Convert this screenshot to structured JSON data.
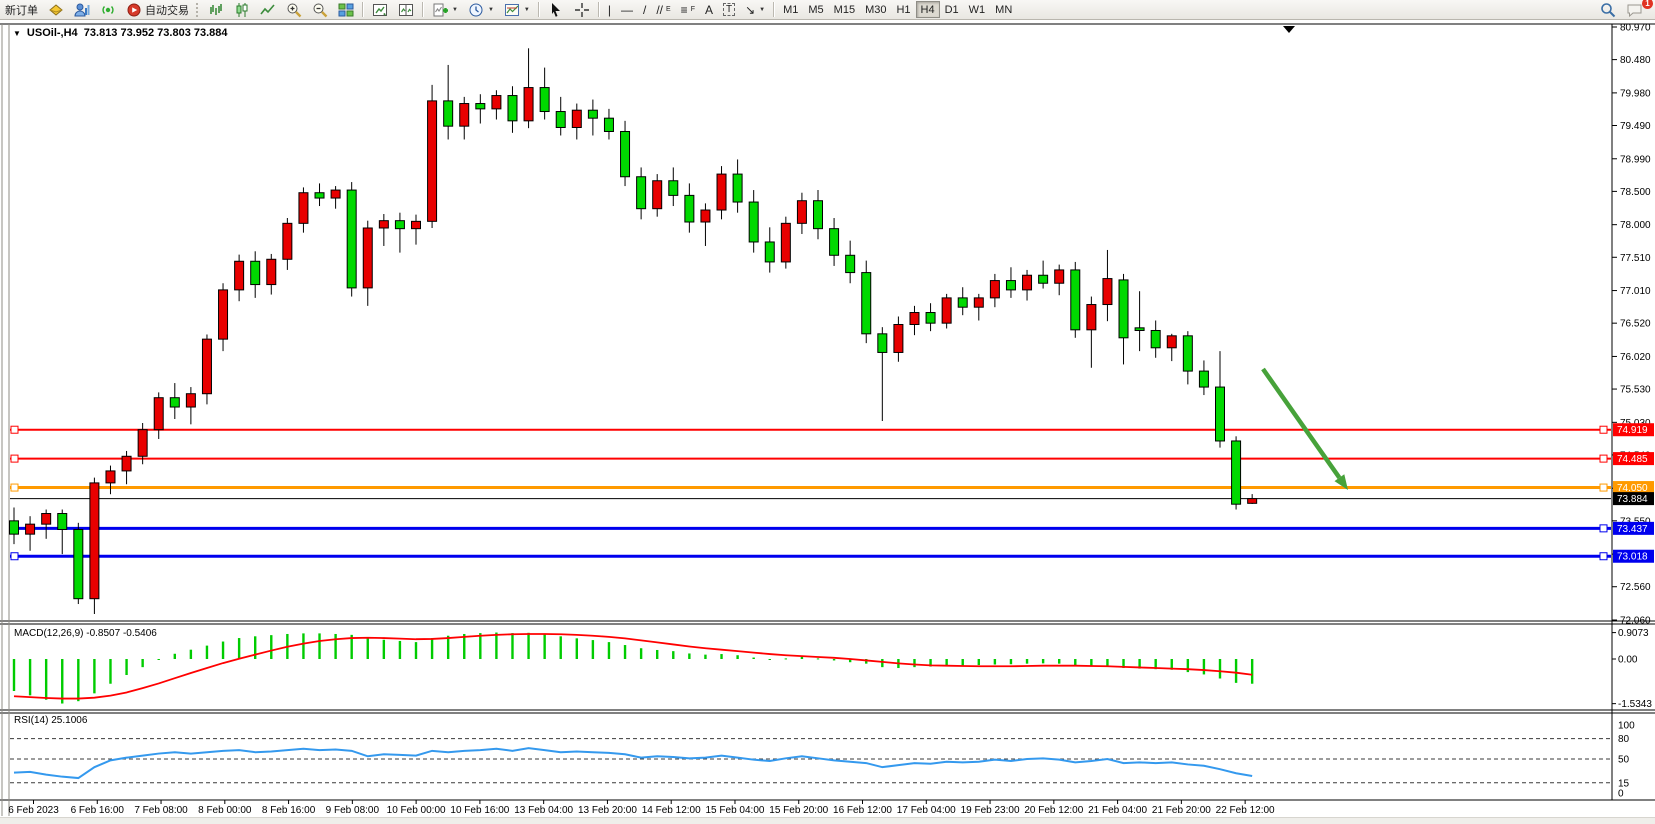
{
  "toolbar": {
    "new_order_label": "新订单",
    "autotrade_label": "自动交易",
    "timeframes": [
      "M1",
      "M5",
      "M15",
      "M30",
      "H1",
      "H4",
      "D1",
      "W1",
      "MN"
    ],
    "active_timeframe": "H4",
    "text_tool_label": "A",
    "label_tool_label": "T",
    "channel_tool_label": "//",
    "channel_tool_sub": "E",
    "fibo_tool_label": "≡",
    "fibo_tool_sub": "F",
    "vline_label": "|",
    "hline_label": "—",
    "trendline_label": "/",
    "arrows_tool_label": "↘",
    "notification_count": "1"
  },
  "chart_header": {
    "symbol_period": "USOil-,H4",
    "ohlc_values": "73.813 73.952 73.803 73.884"
  },
  "price_axis_ticks": [
    "80.970",
    "80.480",
    "79.980",
    "79.490",
    "78.990",
    "78.500",
    "78.000",
    "77.510",
    "77.010",
    "76.520",
    "76.020",
    "75.530",
    "75.030",
    "74.540",
    "74.040",
    "73.550",
    "73.050",
    "72.560",
    "72.060"
  ],
  "macd_panel": {
    "label": "MACD(12,26,9) -0.8507 -0.5406",
    "axis": [
      {
        "label": "0.9073",
        "value": 0.9073
      },
      {
        "label": "0.00",
        "value": 0
      },
      {
        "label": "-1.5343",
        "value": -1.5343
      }
    ]
  },
  "rsi_panel": {
    "label": "RSI(14) 25.1006",
    "axis": [
      {
        "label": "100",
        "value": 100,
        "dashed": false
      },
      {
        "label": "80",
        "value": 80,
        "dashed": true
      },
      {
        "label": "50",
        "value": 50,
        "dashed": true
      },
      {
        "label": "15",
        "value": 15,
        "dashed": true
      },
      {
        "label": "0",
        "value": 0,
        "dashed": false
      }
    ]
  },
  "time_axis": [
    "6 Feb 2023",
    "6 Feb 16:00",
    "7 Feb 08:00",
    "8 Feb 00:00",
    "8 Feb 16:00",
    "9 Feb 08:00",
    "10 Feb 00:00",
    "10 Feb 16:00",
    "13 Feb 04:00",
    "13 Feb 20:00",
    "14 Feb 12:00",
    "15 Feb 04:00",
    "15 Feb 20:00",
    "16 Feb 12:00",
    "17 Feb 04:00",
    "19 Feb 23:00",
    "20 Feb 12:00",
    "21 Feb 04:00",
    "21 Feb 20:00",
    "22 Feb 12:00"
  ],
  "chart_data": {
    "type": "candlestick",
    "symbol": "USOil-",
    "period": "H4",
    "title": "USOil-,H4 73.813 73.952 73.803 73.884",
    "current_bar": {
      "open": 73.813,
      "high": 73.952,
      "low": 73.803,
      "close": 73.884
    },
    "price_range": [
      72.06,
      80.97
    ],
    "bull_color": "#e80000",
    "bear_color": "#00d900",
    "candles": [
      [
        73.55,
        73.75,
        73.2,
        73.35
      ],
      [
        73.35,
        73.62,
        73.1,
        73.5
      ],
      [
        73.5,
        73.72,
        73.28,
        73.66
      ],
      [
        73.66,
        73.72,
        73.05,
        73.42
      ],
      [
        73.42,
        73.52,
        72.3,
        72.38
      ],
      [
        72.38,
        74.2,
        72.15,
        74.12
      ],
      [
        74.12,
        74.38,
        73.95,
        74.3
      ],
      [
        74.3,
        74.6,
        74.1,
        74.52
      ],
      [
        74.52,
        75.02,
        74.4,
        74.92
      ],
      [
        74.92,
        75.48,
        74.78,
        75.4
      ],
      [
        75.4,
        75.62,
        75.08,
        75.26
      ],
      [
        75.26,
        75.56,
        75.0,
        75.46
      ],
      [
        75.46,
        76.35,
        75.3,
        76.28
      ],
      [
        76.28,
        77.12,
        76.1,
        77.02
      ],
      [
        77.02,
        77.55,
        76.85,
        77.45
      ],
      [
        77.45,
        77.6,
        76.9,
        77.1
      ],
      [
        77.1,
        77.56,
        76.95,
        77.48
      ],
      [
        77.48,
        78.1,
        77.32,
        78.02
      ],
      [
        78.02,
        78.56,
        77.88,
        78.48
      ],
      [
        78.48,
        78.62,
        78.28,
        78.4
      ],
      [
        78.4,
        78.58,
        78.24,
        78.52
      ],
      [
        78.52,
        78.64,
        76.92,
        77.05
      ],
      [
        77.05,
        78.06,
        76.78,
        77.95
      ],
      [
        77.95,
        78.16,
        77.68,
        78.06
      ],
      [
        78.06,
        78.18,
        77.58,
        77.94
      ],
      [
        77.94,
        78.15,
        77.7,
        78.05
      ],
      [
        78.05,
        80.1,
        77.95,
        79.86
      ],
      [
        79.86,
        80.4,
        79.28,
        79.48
      ],
      [
        79.48,
        79.92,
        79.28,
        79.82
      ],
      [
        79.82,
        79.96,
        79.52,
        79.74
      ],
      [
        79.74,
        80.02,
        79.58,
        79.94
      ],
      [
        79.94,
        80.08,
        79.38,
        79.56
      ],
      [
        79.56,
        80.65,
        79.45,
        80.06
      ],
      [
        80.06,
        80.36,
        79.58,
        79.7
      ],
      [
        79.7,
        79.92,
        79.34,
        79.46
      ],
      [
        79.46,
        79.82,
        79.28,
        79.72
      ],
      [
        79.72,
        79.88,
        79.34,
        79.6
      ],
      [
        79.6,
        79.74,
        79.28,
        79.4
      ],
      [
        79.4,
        79.56,
        78.58,
        78.72
      ],
      [
        78.72,
        78.86,
        78.08,
        78.24
      ],
      [
        78.24,
        78.76,
        78.12,
        78.66
      ],
      [
        78.66,
        78.86,
        78.28,
        78.44
      ],
      [
        78.44,
        78.62,
        77.88,
        78.04
      ],
      [
        78.04,
        78.32,
        77.68,
        78.22
      ],
      [
        78.22,
        78.88,
        78.08,
        78.76
      ],
      [
        78.76,
        78.98,
        78.18,
        78.34
      ],
      [
        78.34,
        78.52,
        77.58,
        77.74
      ],
      [
        77.74,
        77.96,
        77.28,
        77.44
      ],
      [
        77.44,
        78.12,
        77.34,
        78.02
      ],
      [
        78.02,
        78.48,
        77.86,
        78.36
      ],
      [
        78.36,
        78.52,
        77.78,
        77.94
      ],
      [
        77.94,
        78.1,
        77.38,
        77.54
      ],
      [
        77.54,
        77.76,
        77.12,
        77.28
      ],
      [
        77.28,
        77.46,
        76.22,
        76.36
      ],
      [
        76.36,
        76.46,
        75.05,
        76.08
      ],
      [
        76.08,
        76.62,
        75.94,
        76.5
      ],
      [
        76.5,
        76.78,
        76.34,
        76.68
      ],
      [
        76.68,
        76.82,
        76.4,
        76.52
      ],
      [
        76.52,
        76.96,
        76.44,
        76.9
      ],
      [
        76.9,
        77.06,
        76.64,
        76.76
      ],
      [
        76.76,
        76.96,
        76.56,
        76.9
      ],
      [
        76.9,
        77.26,
        76.76,
        77.16
      ],
      [
        77.16,
        77.36,
        76.9,
        77.02
      ],
      [
        77.02,
        77.32,
        76.86,
        77.24
      ],
      [
        77.24,
        77.46,
        77.04,
        77.12
      ],
      [
        77.12,
        77.4,
        76.94,
        77.32
      ],
      [
        77.32,
        77.44,
        76.3,
        76.42
      ],
      [
        76.42,
        76.92,
        75.85,
        76.8
      ],
      [
        76.8,
        77.62,
        76.55,
        77.19
      ],
      [
        77.17,
        77.26,
        75.9,
        76.3
      ],
      [
        76.45,
        77.0,
        76.1,
        76.41
      ],
      [
        76.41,
        76.56,
        76.0,
        76.15
      ],
      [
        76.15,
        76.36,
        75.95,
        76.33
      ],
      [
        76.33,
        76.4,
        75.6,
        75.8
      ],
      [
        75.8,
        75.96,
        75.44,
        75.56
      ],
      [
        75.56,
        76.1,
        74.65,
        74.75
      ],
      [
        74.75,
        74.82,
        73.72,
        73.8
      ],
      [
        73.813,
        73.952,
        73.803,
        73.884
      ]
    ],
    "horizontal_levels": [
      {
        "price": 74.919,
        "label": "74.919",
        "color": "#ff0000",
        "width": 2
      },
      {
        "price": 74.485,
        "label": "74.485",
        "color": "#ff0000",
        "width": 2
      },
      {
        "price": 74.05,
        "label": "74.050",
        "color": "#ff9a00",
        "width": 3
      },
      {
        "price": 73.437,
        "label": "73.437",
        "color": "#0000ee",
        "width": 3
      },
      {
        "price": 73.018,
        "label": "73.018",
        "color": "#0000ee",
        "width": 3
      }
    ],
    "current_price": {
      "value": 73.884,
      "label": "73.884",
      "color": "#000000"
    },
    "macd": {
      "params": "12,26,9",
      "main_value": -0.8507,
      "signal_value": -0.5406,
      "hist_color": "#00cc00",
      "signal_color": "#ff0000",
      "range": [
        -1.5343,
        0.9073
      ],
      "histogram": [
        -1.1,
        -1.25,
        -1.4,
        -1.53,
        -1.45,
        -1.18,
        -0.85,
        -0.55,
        -0.28,
        -0.02,
        0.18,
        0.32,
        0.46,
        0.6,
        0.72,
        0.78,
        0.82,
        0.86,
        0.88,
        0.88,
        0.86,
        0.83,
        0.74,
        0.66,
        0.62,
        0.58,
        0.72,
        0.8,
        0.86,
        0.89,
        0.91,
        0.89,
        0.9,
        0.85,
        0.78,
        0.71,
        0.65,
        0.58,
        0.48,
        0.37,
        0.31,
        0.27,
        0.19,
        0.15,
        0.17,
        0.13,
        0.05,
        -0.02,
        0.02,
        0.07,
        0.02,
        -0.05,
        -0.11,
        -0.16,
        -0.28,
        -0.31,
        -0.28,
        -0.26,
        -0.22,
        -0.22,
        -0.21,
        -0.19,
        -0.18,
        -0.16,
        -0.15,
        -0.16,
        -0.22,
        -0.26,
        -0.24,
        -0.31,
        -0.33,
        -0.35,
        -0.37,
        -0.45,
        -0.53,
        -0.67,
        -0.82,
        -0.85
      ],
      "signal": [
        -1.28,
        -1.31,
        -1.34,
        -1.36,
        -1.36,
        -1.33,
        -1.26,
        -1.15,
        -1.0,
        -0.84,
        -0.66,
        -0.48,
        -0.31,
        -0.14,
        0.01,
        0.15,
        0.29,
        0.42,
        0.53,
        0.62,
        0.68,
        0.72,
        0.73,
        0.72,
        0.7,
        0.68,
        0.69,
        0.72,
        0.76,
        0.8,
        0.83,
        0.85,
        0.86,
        0.86,
        0.85,
        0.83,
        0.8,
        0.76,
        0.71,
        0.64,
        0.57,
        0.5,
        0.43,
        0.37,
        0.32,
        0.27,
        0.22,
        0.17,
        0.13,
        0.1,
        0.07,
        0.04,
        0.0,
        -0.05,
        -0.1,
        -0.15,
        -0.19,
        -0.22,
        -0.23,
        -0.24,
        -0.25,
        -0.25,
        -0.25,
        -0.24,
        -0.23,
        -0.23,
        -0.23,
        -0.24,
        -0.25,
        -0.27,
        -0.29,
        -0.31,
        -0.33,
        -0.35,
        -0.38,
        -0.42,
        -0.47,
        -0.54
      ]
    },
    "rsi": {
      "period": 14,
      "value": 25.1006,
      "color": "#3499ee",
      "levels": [
        80,
        50,
        15
      ],
      "values": [
        30,
        31,
        27,
        24,
        22,
        38,
        48,
        52,
        55,
        58,
        60,
        58,
        60,
        62,
        63,
        60,
        61,
        63,
        65,
        63,
        64,
        62,
        54,
        57,
        56,
        55,
        62,
        60,
        62,
        63,
        65,
        62,
        66,
        63,
        60,
        61,
        60,
        59,
        57,
        52,
        54,
        53,
        51,
        52,
        55,
        52,
        49,
        47,
        51,
        54,
        51,
        48,
        46,
        44,
        38,
        41,
        44,
        43,
        46,
        45,
        46,
        49,
        47,
        50,
        51,
        49,
        45,
        47,
        50,
        44,
        45,
        44,
        45,
        42,
        40,
        35,
        29,
        25
      ]
    },
    "annotation_arrow": {
      "from": [
        1263,
        369
      ],
      "to": [
        1348,
        490
      ],
      "color": "#47a23a"
    }
  }
}
